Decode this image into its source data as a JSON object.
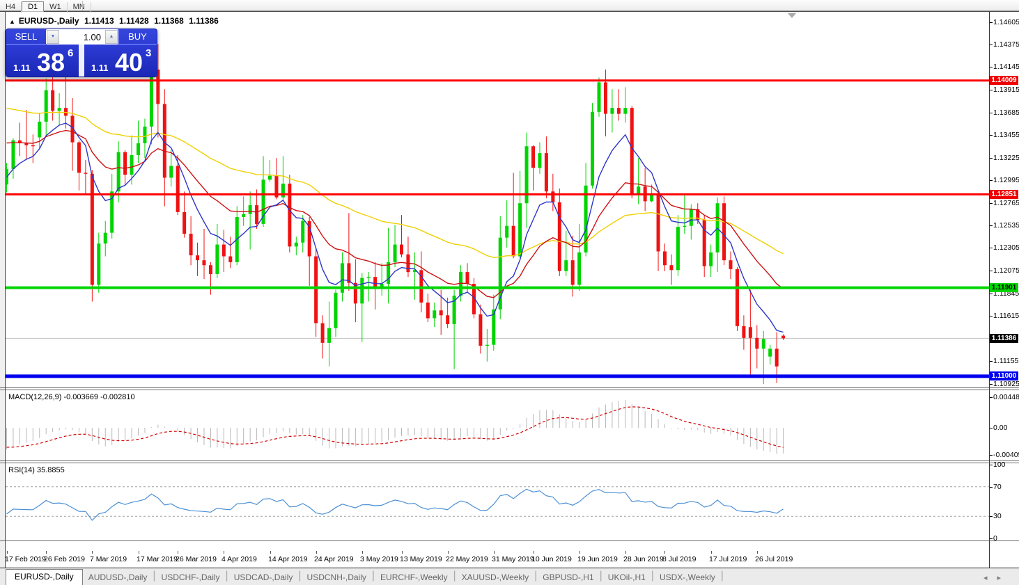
{
  "toolbar": {
    "timeframes": [
      {
        "label": "H4",
        "active": false
      },
      {
        "label": "D1",
        "active": true
      },
      {
        "label": "W1",
        "active": false
      },
      {
        "label": "MN",
        "active": false
      }
    ]
  },
  "chart_header": {
    "collapse_icon": "▲",
    "symbol": "EURUSD-,Daily",
    "open": "1.11413",
    "high": "1.11428",
    "low": "1.11368",
    "close": "1.11386"
  },
  "one_click_panel": {
    "sell_label": "SELL",
    "buy_label": "BUY",
    "volume": "1.00",
    "spinner_down_icon": "▼",
    "spinner_up_icon": "▲",
    "sell_price_prefix": "1.11",
    "sell_price_big": "38",
    "sell_price_sup": "6",
    "buy_price_prefix": "1.11",
    "buy_price_big": "40",
    "buy_price_sup": "3"
  },
  "macd_panel": {
    "label": "MACD(12,26,9) -0.003669 -0.002810",
    "ticks": [
      "0.004482",
      "0.00",
      "-0.004057"
    ]
  },
  "rsi_panel": {
    "label": "RSI(14) 35.8855",
    "ticks": [
      "100",
      "70",
      "30",
      "0"
    ]
  },
  "price_axis": {
    "ticks": [
      "1.14605",
      "1.14375",
      "1.14145",
      "1.13915",
      "1.13685",
      "1.13455",
      "1.13225",
      "1.12995",
      "1.12765",
      "1.12535",
      "1.12305",
      "1.12075",
      "1.11845",
      "1.11615",
      "1.11155",
      "1.10925"
    ],
    "chips": [
      {
        "text": "1.14009",
        "price": 1.14009,
        "bg": "#ee0000",
        "fg": "#ffffff"
      },
      {
        "text": "1.12851",
        "price": 1.12851,
        "bg": "#ee0000",
        "fg": "#ffffff"
      },
      {
        "text": "1.11901",
        "price": 1.11901,
        "bg": "#00d500",
        "fg": "#000000"
      },
      {
        "text": "1.11386",
        "price": 1.11386,
        "bg": "#000000",
        "fg": "#ffffff"
      },
      {
        "text": "1.11000",
        "price": 1.11,
        "bg": "#0000ee",
        "fg": "#ffffff"
      }
    ]
  },
  "x_axis": {
    "labels": [
      {
        "text": "17 Feb 2019",
        "index": 0
      },
      {
        "text": "26 Feb 2019",
        "index": 6
      },
      {
        "text": "7 Mar 2019",
        "index": 13
      },
      {
        "text": "17 Mar 2019",
        "index": 20
      },
      {
        "text": "26 Mar 2019",
        "index": 26
      },
      {
        "text": "4 Apr 2019",
        "index": 33
      },
      {
        "text": "14 Apr 2019",
        "index": 40
      },
      {
        "text": "24 Apr 2019",
        "index": 47
      },
      {
        "text": "3 May 2019",
        "index": 54
      },
      {
        "text": "13 May 2019",
        "index": 60
      },
      {
        "text": "22 May 2019",
        "index": 67
      },
      {
        "text": "31 May 2019",
        "index": 74
      },
      {
        "text": "10 Jun 2019",
        "index": 80
      },
      {
        "text": "19 Jun 2019",
        "index": 87
      },
      {
        "text": "28 Jun 2019",
        "index": 94
      },
      {
        "text": "8 Jul 2019",
        "index": 100
      },
      {
        "text": "17 Jul 2019",
        "index": 107
      },
      {
        "text": "26 Jul 2019",
        "index": 114
      }
    ]
  },
  "tabs": {
    "items": [
      {
        "label": "EURUSD-,Daily",
        "active": true
      },
      {
        "label": "AUDUSD-,Daily",
        "active": false
      },
      {
        "label": "USDCHF-,Daily",
        "active": false
      },
      {
        "label": "USDCAD-,Daily",
        "active": false
      },
      {
        "label": "USDCNH-,Daily",
        "active": false
      },
      {
        "label": "EURCHF-,Weekly",
        "active": false
      },
      {
        "label": "XAUUSD-,Weekly",
        "active": false
      },
      {
        "label": "GBPUSD-,H1",
        "active": false
      },
      {
        "label": "UKOil-,H1",
        "active": false
      },
      {
        "label": "USDX-,Weekly",
        "active": false
      }
    ],
    "scroll_left_icon": "◂",
    "scroll_right_icon": "▸"
  },
  "chart_data": {
    "type": "candlestick",
    "symbol": "EURUSD-",
    "timeframe": "Daily",
    "title": "EURUSD-,Daily",
    "ohlc_current": [
      1.11413,
      1.11428,
      1.11368,
      1.11386
    ],
    "price_range": [
      1.10925,
      1.14605
    ],
    "axis_step": 0.0023,
    "grid": false,
    "colors": {
      "bull": "#00d400",
      "bear": "#f01212",
      "background": "#ffffff",
      "current_line": "#c0c0c0"
    },
    "levels": [
      {
        "price": 1.14009,
        "color": "#ff0000",
        "width": 3
      },
      {
        "price": 1.12851,
        "color": "#ff0000",
        "width": 3
      },
      {
        "price": 1.11901,
        "color": "#00d500",
        "width": 4
      },
      {
        "price": 1.11,
        "color": "#0000ee",
        "width": 5
      }
    ],
    "current_price": 1.11386,
    "moving_averages": [
      {
        "name": "fast",
        "period": 8,
        "color": "#2d36c8",
        "seed": 1.13
      },
      {
        "name": "mid",
        "period": 21,
        "color": "#cc1111",
        "seed": 1.134
      },
      {
        "name": "slow",
        "period": 55,
        "color": "#efd002",
        "seed": 1.1375
      }
    ],
    "macd": {
      "fast": 12,
      "slow": 26,
      "signal": 9,
      "histogram_color": "#b8b8b8",
      "signal_color": "#d40000",
      "range": [
        -0.004057,
        0.004482
      ],
      "current_macd": -0.003669,
      "current_signal": -0.00281
    },
    "rsi": {
      "period": 14,
      "color": "#4a8fd4",
      "levels": [
        70,
        30
      ],
      "range": [
        0,
        100
      ],
      "current": 35.8855
    },
    "candles": [
      [
        1.1295,
        1.1317,
        1.1287,
        1.1311
      ],
      [
        1.1311,
        1.1342,
        1.1301,
        1.134
      ],
      [
        1.134,
        1.1358,
        1.1324,
        1.1337
      ],
      [
        1.1337,
        1.1371,
        1.1321,
        1.1335
      ],
      [
        1.1335,
        1.1346,
        1.1317,
        1.1334
      ],
      [
        1.1343,
        1.1368,
        1.1331,
        1.1359
      ],
      [
        1.1359,
        1.1403,
        1.1345,
        1.1391
      ],
      [
        1.1391,
        1.1408,
        1.136,
        1.137
      ],
      [
        1.137,
        1.1388,
        1.1355,
        1.1373
      ],
      [
        1.1373,
        1.141,
        1.1352,
        1.1365
      ],
      [
        1.1365,
        1.1383,
        1.1309,
        1.1338
      ],
      [
        1.1338,
        1.134,
        1.1289,
        1.1307
      ],
      [
        1.1307,
        1.132,
        1.1285,
        1.1306
      ],
      [
        1.1306,
        1.131,
        1.1176,
        1.1193
      ],
      [
        1.1193,
        1.1246,
        1.1185,
        1.1235
      ],
      [
        1.1235,
        1.1258,
        1.1222,
        1.1246
      ],
      [
        1.1246,
        1.1306,
        1.124,
        1.1288
      ],
      [
        1.1288,
        1.1339,
        1.1277,
        1.1328
      ],
      [
        1.1328,
        1.133,
        1.1294,
        1.1305
      ],
      [
        1.1305,
        1.1345,
        1.1295,
        1.1325
      ],
      [
        1.1325,
        1.136,
        1.1317,
        1.1337
      ],
      [
        1.1337,
        1.1362,
        1.1322,
        1.1354
      ],
      [
        1.1354,
        1.1448,
        1.1336,
        1.1412
      ],
      [
        1.1412,
        1.1438,
        1.1343,
        1.1377
      ],
      [
        1.1377,
        1.1392,
        1.1273,
        1.1302
      ],
      [
        1.1302,
        1.133,
        1.1293,
        1.1314
      ],
      [
        1.1314,
        1.1325,
        1.1264,
        1.1267
      ],
      [
        1.1267,
        1.1288,
        1.1241,
        1.1245
      ],
      [
        1.1245,
        1.1263,
        1.1213,
        1.1223
      ],
      [
        1.1223,
        1.1236,
        1.1202,
        1.1218
      ],
      [
        1.1218,
        1.125,
        1.1199,
        1.1213
      ],
      [
        1.1213,
        1.1216,
        1.1183,
        1.1204
      ],
      [
        1.1204,
        1.1255,
        1.12,
        1.1234
      ],
      [
        1.1234,
        1.1249,
        1.1206,
        1.1222
      ],
      [
        1.1222,
        1.1242,
        1.121,
        1.1216
      ],
      [
        1.1216,
        1.1273,
        1.1213,
        1.1262
      ],
      [
        1.1262,
        1.1283,
        1.1253,
        1.1265
      ],
      [
        1.1265,
        1.1288,
        1.1229,
        1.1274
      ],
      [
        1.1274,
        1.129,
        1.125,
        1.1255
      ],
      [
        1.1255,
        1.1324,
        1.1252,
        1.13
      ],
      [
        1.13,
        1.132,
        1.1298,
        1.1304
      ],
      [
        1.1304,
        1.1322,
        1.128,
        1.1282
      ],
      [
        1.1282,
        1.1324,
        1.128,
        1.1296
      ],
      [
        1.1296,
        1.1305,
        1.1226,
        1.1232
      ],
      [
        1.1232,
        1.1242,
        1.1223,
        1.1236
      ],
      [
        1.1236,
        1.1264,
        1.1226,
        1.1258
      ],
      [
        1.1258,
        1.1262,
        1.1192,
        1.1222
      ],
      [
        1.1222,
        1.123,
        1.114,
        1.1154
      ],
      [
        1.1154,
        1.1162,
        1.1118,
        1.1134
      ],
      [
        1.1134,
        1.1176,
        1.111,
        1.1149
      ],
      [
        1.1149,
        1.1188,
        1.114,
        1.1185
      ],
      [
        1.1185,
        1.1226,
        1.1176,
        1.1215
      ],
      [
        1.1215,
        1.1266,
        1.1187,
        1.1195
      ],
      [
        1.1195,
        1.1219,
        1.1155,
        1.1174
      ],
      [
        1.1174,
        1.1205,
        1.1135,
        1.12
      ],
      [
        1.12,
        1.1206,
        1.1176,
        1.1201
      ],
      [
        1.1201,
        1.1216,
        1.1168,
        1.119
      ],
      [
        1.119,
        1.1215,
        1.1182,
        1.1194
      ],
      [
        1.1194,
        1.1251,
        1.1174,
        1.1216
      ],
      [
        1.1216,
        1.1254,
        1.1211,
        1.1234
      ],
      [
        1.1234,
        1.1264,
        1.1221,
        1.1224
      ],
      [
        1.1224,
        1.1242,
        1.1201,
        1.1206
      ],
      [
        1.1206,
        1.1226,
        1.1178,
        1.1208
      ],
      [
        1.1208,
        1.1227,
        1.1165,
        1.1175
      ],
      [
        1.1175,
        1.1184,
        1.1155,
        1.1159
      ],
      [
        1.1159,
        1.1175,
        1.115,
        1.1167
      ],
      [
        1.1167,
        1.1188,
        1.1142,
        1.1162
      ],
      [
        1.1162,
        1.118,
        1.1149,
        1.1153
      ],
      [
        1.1153,
        1.1188,
        1.1107,
        1.1182
      ],
      [
        1.1182,
        1.1213,
        1.1176,
        1.1206
      ],
      [
        1.1206,
        1.1215,
        1.1186,
        1.1194
      ],
      [
        1.1194,
        1.12,
        1.1159,
        1.1163
      ],
      [
        1.1163,
        1.1173,
        1.1123,
        1.1131
      ],
      [
        1.1131,
        1.1148,
        1.1115,
        1.1132
      ],
      [
        1.1132,
        1.1183,
        1.1126,
        1.1168
      ],
      [
        1.1168,
        1.1263,
        1.1158,
        1.1241
      ],
      [
        1.1241,
        1.1279,
        1.1231,
        1.1253
      ],
      [
        1.1253,
        1.1307,
        1.122,
        1.1222
      ],
      [
        1.1222,
        1.1309,
        1.1219,
        1.1276
      ],
      [
        1.1276,
        1.1348,
        1.1251,
        1.1334
      ],
      [
        1.1334,
        1.1335,
        1.1289,
        1.1312
      ],
      [
        1.1312,
        1.1338,
        1.1306,
        1.1327
      ],
      [
        1.1327,
        1.1344,
        1.1281,
        1.1288
      ],
      [
        1.1288,
        1.1306,
        1.1268,
        1.1277
      ],
      [
        1.1277,
        1.1291,
        1.1202,
        1.1207
      ],
      [
        1.1207,
        1.1248,
        1.1202,
        1.1218
      ],
      [
        1.1218,
        1.1243,
        1.1181,
        1.1193
      ],
      [
        1.1193,
        1.1255,
        1.1187,
        1.1226
      ],
      [
        1.1226,
        1.1317,
        1.1222,
        1.1294
      ],
      [
        1.1294,
        1.1378,
        1.1291,
        1.1369
      ],
      [
        1.1369,
        1.1404,
        1.1364,
        1.1399
      ],
      [
        1.1399,
        1.1412,
        1.1344,
        1.1367
      ],
      [
        1.1367,
        1.1392,
        1.1348,
        1.1373
      ],
      [
        1.1373,
        1.1392,
        1.136,
        1.1367
      ],
      [
        1.1367,
        1.1394,
        1.1358,
        1.1373
      ],
      [
        1.1373,
        1.1375,
        1.1281,
        1.1285
      ],
      [
        1.1285,
        1.1322,
        1.1275,
        1.1293
      ],
      [
        1.1293,
        1.1312,
        1.1268,
        1.1278
      ],
      [
        1.1278,
        1.1295,
        1.1277,
        1.1285
      ],
      [
        1.1285,
        1.1289,
        1.1207,
        1.1227
      ],
      [
        1.1227,
        1.1235,
        1.1207,
        1.1213
      ],
      [
        1.1213,
        1.1224,
        1.1193,
        1.1208
      ],
      [
        1.1208,
        1.1264,
        1.1202,
        1.1252
      ],
      [
        1.1252,
        1.1286,
        1.1245,
        1.1253
      ],
      [
        1.1253,
        1.1275,
        1.1239,
        1.127
      ],
      [
        1.127,
        1.1276,
        1.1255,
        1.1259
      ],
      [
        1.1259,
        1.1264,
        1.1201,
        1.1212
      ],
      [
        1.1212,
        1.1234,
        1.1201,
        1.1226
      ],
      [
        1.1226,
        1.1282,
        1.1206,
        1.1276
      ],
      [
        1.1276,
        1.1283,
        1.1213,
        1.1218
      ],
      [
        1.1218,
        1.1227,
        1.1199,
        1.1209
      ],
      [
        1.1209,
        1.1211,
        1.1146,
        1.1151
      ],
      [
        1.1151,
        1.1162,
        1.1127,
        1.1139
      ],
      [
        1.115,
        1.1188,
        1.1101,
        1.1139
      ],
      [
        1.1139,
        1.1152,
        1.1108,
        1.1128
      ],
      [
        1.1128,
        1.1146,
        1.1092,
        1.1138
      ],
      [
        1.112,
        1.1132,
        1.1112,
        1.1128
      ],
      [
        1.1128,
        1.1145,
        1.1093,
        1.111
      ],
      [
        1.11413,
        1.11428,
        1.11368,
        1.11386
      ]
    ]
  }
}
